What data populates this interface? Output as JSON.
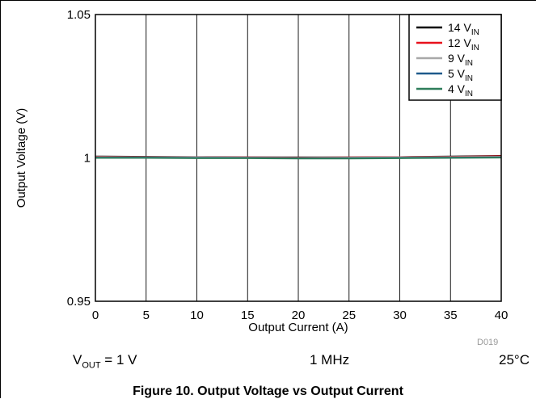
{
  "chart_data": {
    "type": "line",
    "title": "",
    "xlabel": "Output Current (A)",
    "ylabel": "Output Voltage (V)",
    "xlim": [
      0,
      40
    ],
    "ylim": [
      0.95,
      1.05
    ],
    "x_ticks": [
      "0",
      "5",
      "10",
      "15",
      "20",
      "25",
      "30",
      "35",
      "40"
    ],
    "y_ticks": [
      "0.95",
      "1",
      "1.05"
    ],
    "vertical_grid": true,
    "legend_position": "top-right",
    "x": [
      0,
      5,
      10,
      15,
      20,
      25,
      30,
      35,
      40
    ],
    "series": [
      {
        "name": "14 V",
        "name_sub": "IN",
        "color": "#000000",
        "values": [
          1.0005,
          1.0004,
          1.0003,
          1.0002,
          1.0002,
          1.0002,
          1.0003,
          1.0005,
          1.0007
        ]
      },
      {
        "name": "12 V",
        "name_sub": "IN",
        "color": "#e8111c",
        "values": [
          1.0004,
          1.0003,
          1.0002,
          1.0002,
          1.0001,
          1.0002,
          1.0003,
          1.0004,
          1.0006
        ]
      },
      {
        "name": "9 V",
        "name_sub": "IN",
        "color": "#a8a8a8",
        "values": [
          1.0003,
          1.0002,
          1.0002,
          1.0001,
          1.0,
          1.0001,
          1.0002,
          1.0003,
          1.0004
        ]
      },
      {
        "name": "5 V",
        "name_sub": "IN",
        "color": "#1e5a8c",
        "values": [
          1.0001,
          1.0001,
          1.0,
          1.0,
          0.9999,
          0.9999,
          1.0,
          1.0001,
          1.0002
        ]
      },
      {
        "name": "4 V",
        "name_sub": "IN",
        "color": "#2e7d5a",
        "values": [
          1.0,
          1.0,
          0.9999,
          0.9999,
          0.9998,
          0.9998,
          0.9999,
          1.0,
          1.0001
        ]
      }
    ]
  },
  "conditions": {
    "vout_prefix": "V",
    "vout_sub": "OUT",
    "vout_value": " = 1 V",
    "frequency": "1 MHz",
    "temperature": "25°C"
  },
  "doc_id": "D019",
  "caption": "Figure 10. Output Voltage vs Output Current"
}
